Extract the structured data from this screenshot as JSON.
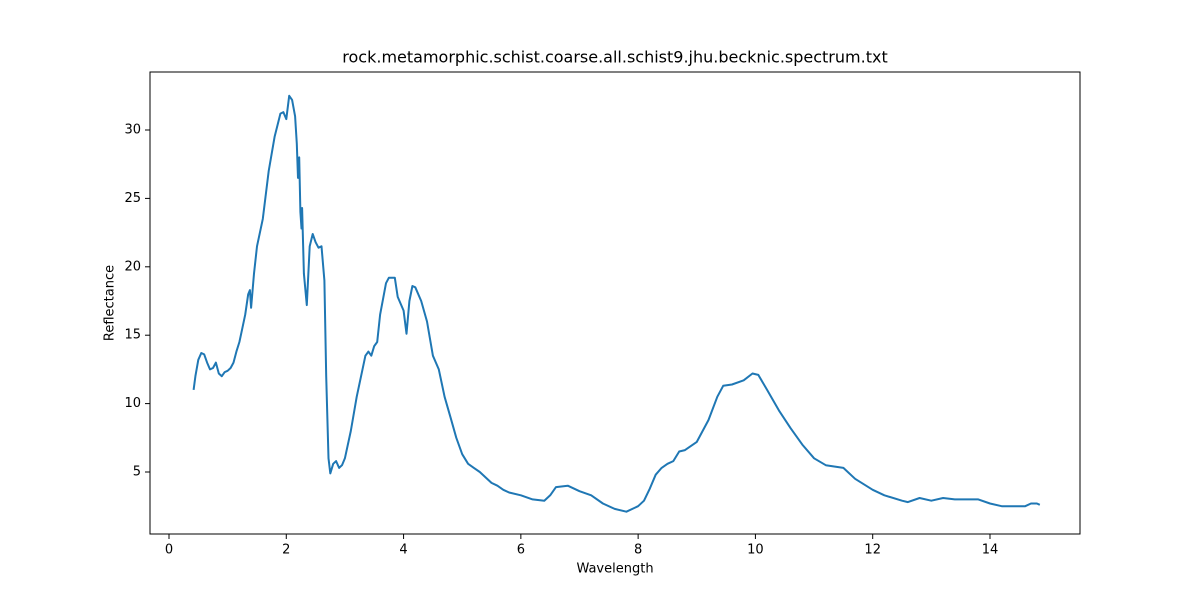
{
  "chart_data": {
    "type": "line",
    "title": "rock.metamorphic.schist.coarse.all.schist9.jhu.becknic.spectrum.txt",
    "xlabel": "Wavelength",
    "ylabel": "Reflectance",
    "color": "#1f77b4",
    "xlim": [
      -0.324,
      15.535
    ],
    "ylim": [
      0.468,
      34.24
    ],
    "xticks": [
      0,
      2,
      4,
      6,
      8,
      10,
      12,
      14
    ],
    "yticks": [
      5,
      10,
      15,
      20,
      25,
      30
    ],
    "x": [
      0.42,
      0.45,
      0.5,
      0.55,
      0.6,
      0.65,
      0.7,
      0.75,
      0.8,
      0.85,
      0.9,
      0.95,
      1.0,
      1.05,
      1.1,
      1.15,
      1.2,
      1.25,
      1.3,
      1.35,
      1.38,
      1.4,
      1.45,
      1.5,
      1.6,
      1.7,
      1.8,
      1.9,
      1.95,
      2.0,
      2.05,
      2.1,
      2.15,
      2.18,
      2.2,
      2.22,
      2.24,
      2.26,
      2.27,
      2.3,
      2.35,
      2.4,
      2.45,
      2.5,
      2.55,
      2.6,
      2.65,
      2.68,
      2.72,
      2.75,
      2.8,
      2.85,
      2.9,
      2.95,
      3.0,
      3.1,
      3.2,
      3.3,
      3.35,
      3.4,
      3.45,
      3.5,
      3.55,
      3.6,
      3.7,
      3.75,
      3.85,
      3.9,
      4.0,
      4.05,
      4.1,
      4.15,
      4.2,
      4.3,
      4.4,
      4.5,
      4.6,
      4.7,
      4.8,
      4.9,
      5.0,
      5.1,
      5.2,
      5.3,
      5.4,
      5.5,
      5.6,
      5.7,
      5.8,
      6.0,
      6.2,
      6.4,
      6.5,
      6.6,
      6.8,
      7.0,
      7.2,
      7.4,
      7.6,
      7.8,
      8.0,
      8.1,
      8.2,
      8.3,
      8.4,
      8.5,
      8.6,
      8.7,
      8.8,
      9.0,
      9.2,
      9.35,
      9.45,
      9.6,
      9.8,
      9.95,
      10.05,
      10.2,
      10.4,
      10.6,
      10.8,
      11.0,
      11.2,
      11.5,
      11.7,
      12.0,
      12.2,
      12.5,
      12.6,
      12.8,
      13.0,
      13.2,
      13.4,
      13.6,
      13.8,
      14.0,
      14.2,
      14.4,
      14.6,
      14.7,
      14.8,
      14.85
    ],
    "values": [
      11.0,
      12.0,
      13.2,
      13.7,
      13.6,
      13.0,
      12.5,
      12.6,
      13.0,
      12.2,
      12.0,
      12.3,
      12.4,
      12.6,
      13.0,
      13.8,
      14.5,
      15.5,
      16.5,
      18.0,
      18.3,
      17.0,
      19.5,
      21.5,
      23.5,
      27,
      29.5,
      31.2,
      31.3,
      30.8,
      32.5,
      32.2,
      31.0,
      29,
      26.5,
      28.0,
      24,
      22.8,
      24.3,
      19.5,
      17.2,
      21.5,
      22.4,
      21.8,
      21.4,
      21.5,
      19,
      12,
      6,
      4.9,
      5.6,
      5.8,
      5.3,
      5.5,
      6.0,
      8,
      10.5,
      12.5,
      13.5,
      13.8,
      13.5,
      14.2,
      14.5,
      16.5,
      18.8,
      19.2,
      19.2,
      17.8,
      16.8,
      15.1,
      17.5,
      18.6,
      18.5,
      17.5,
      16,
      13.5,
      12.5,
      10.5,
      9,
      7.5,
      6.3,
      5.6,
      5.3,
      5.0,
      4.6,
      4.2,
      4.0,
      3.7,
      3.5,
      3.3,
      3.0,
      2.9,
      3.3,
      3.9,
      4.0,
      3.6,
      3.3,
      2.7,
      2.3,
      2.1,
      2.5,
      2.9,
      3.8,
      4.8,
      5.3,
      5.6,
      5.8,
      6.5,
      6.6,
      7.2,
      8.8,
      10.5,
      11.3,
      11.4,
      11.7,
      12.2,
      12.1,
      11,
      9.5,
      8.2,
      7,
      6,
      5.5,
      5.3,
      4.5,
      3.7,
      3.3,
      2.9,
      2.8,
      3.1,
      2.9,
      3.1,
      3.0,
      3.0,
      3.0,
      2.7,
      2.5,
      2.5,
      2.5,
      2.7,
      2.7,
      2.6
    ]
  }
}
